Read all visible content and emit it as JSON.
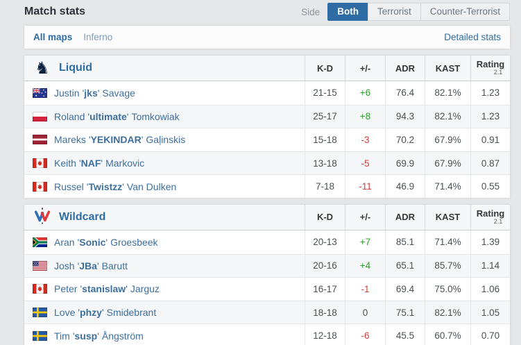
{
  "colors": {
    "accent": "#2d6da3",
    "positive": "#28a228",
    "negative": "#ce4242"
  },
  "header": {
    "title": "Match stats",
    "side_label": "Side",
    "tabs": [
      {
        "label": "Both",
        "active": true
      },
      {
        "label": "Terrorist",
        "active": false
      },
      {
        "label": "Counter-Terrorist",
        "active": false
      }
    ]
  },
  "subnav": {
    "maps": [
      {
        "label": "All maps",
        "active": true
      },
      {
        "label": "Inferno",
        "active": false
      }
    ],
    "detailed_stats": "Detailed stats"
  },
  "columns": {
    "kd": "K-D",
    "plus_minus": "+/-",
    "adr": "ADR",
    "kast": "KAST",
    "rating": "Rating",
    "rating_version": "2.1"
  },
  "teams": [
    {
      "name": "Liquid",
      "players": [
        {
          "country": "Australia",
          "first": "Justin",
          "nick": "jks",
          "last": "Savage",
          "kd": "21-15",
          "diff": "+6",
          "diff_sign": "pos",
          "adr": "76.4",
          "kast": "82.1%",
          "rating": "1.23"
        },
        {
          "country": "Poland",
          "first": "Roland",
          "nick": "ultimate",
          "last": "Tomkowiak",
          "kd": "25-17",
          "diff": "+8",
          "diff_sign": "pos",
          "adr": "94.3",
          "kast": "82.1%",
          "rating": "1.23"
        },
        {
          "country": "Latvia",
          "first": "Mareks",
          "nick": "YEKINDAR",
          "last": "Gaļinskis",
          "kd": "15-18",
          "diff": "-3",
          "diff_sign": "neg",
          "adr": "70.2",
          "kast": "67.9%",
          "rating": "0.91"
        },
        {
          "country": "Canada",
          "first": "Keith",
          "nick": "NAF",
          "last": "Markovic",
          "kd": "13-18",
          "diff": "-5",
          "diff_sign": "neg",
          "adr": "69.9",
          "kast": "67.9%",
          "rating": "0.87"
        },
        {
          "country": "Canada",
          "first": "Russel",
          "nick": "Twistzz",
          "last": "Van Dulken",
          "kd": "7-18",
          "diff": "-11",
          "diff_sign": "neg",
          "adr": "46.9",
          "kast": "71.4%",
          "rating": "0.55"
        }
      ]
    },
    {
      "name": "Wildcard",
      "players": [
        {
          "country": "South Africa",
          "first": "Aran",
          "nick": "Sonic",
          "last": "Groesbeek",
          "kd": "20-13",
          "diff": "+7",
          "diff_sign": "pos",
          "adr": "85.1",
          "kast": "71.4%",
          "rating": "1.39"
        },
        {
          "country": "United States",
          "first": "Josh",
          "nick": "JBa",
          "last": "Barutt",
          "kd": "20-16",
          "diff": "+4",
          "diff_sign": "pos",
          "adr": "65.1",
          "kast": "85.7%",
          "rating": "1.14"
        },
        {
          "country": "Canada",
          "first": "Peter",
          "nick": "stanislaw",
          "last": "Jarguz",
          "kd": "16-17",
          "diff": "-1",
          "diff_sign": "neg",
          "adr": "69.4",
          "kast": "75.0%",
          "rating": "1.06"
        },
        {
          "country": "Sweden",
          "first": "Love",
          "nick": "phzy",
          "last": "Smidebrant",
          "kd": "18-18",
          "diff": "0",
          "diff_sign": "zero",
          "adr": "75.1",
          "kast": "82.1%",
          "rating": "1.05"
        },
        {
          "country": "Sweden",
          "first": "Tim",
          "nick": "susp",
          "last": "Ångström",
          "kd": "12-18",
          "diff": "-6",
          "diff_sign": "neg",
          "adr": "45.5",
          "kast": "60.7%",
          "rating": "0.70"
        }
      ]
    }
  ]
}
